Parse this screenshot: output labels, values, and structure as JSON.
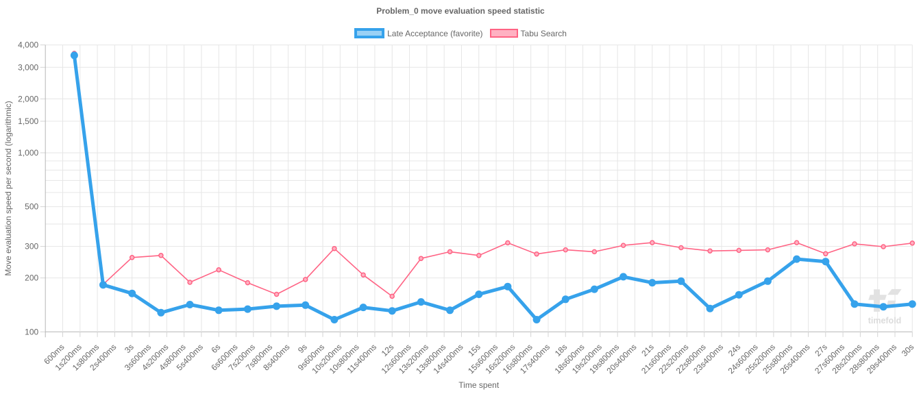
{
  "chart_data": {
    "type": "line",
    "title": "Problem_0 move evaluation speed statistic",
    "xlabel": "Time spent",
    "ylabel": "Move evaluation speed per second (logarithmic)",
    "x_unit": "seconds",
    "xlim": [
      0,
      30
    ],
    "ylim": [
      100,
      4000
    ],
    "y_scale": "logarithmic",
    "grid": true,
    "legend_position": "top",
    "watermark_text": "timefold",
    "x_ticks": {
      "seconds": [
        0.6,
        1.2,
        1.8,
        2.4,
        3,
        3.6,
        4.2,
        4.8,
        5.4,
        6,
        6.6,
        7.2,
        7.8,
        8.4,
        9,
        9.6,
        10.2,
        10.8,
        11.4,
        12,
        12.6,
        13.2,
        13.8,
        14.4,
        15,
        15.6,
        16.2,
        16.8,
        17.4,
        18,
        18.6,
        19.2,
        19.8,
        20.4,
        21,
        21.6,
        22.2,
        22.8,
        23.4,
        24,
        24.6,
        25.2,
        25.8,
        26.4,
        27,
        27.6,
        28.2,
        28.8,
        29.4,
        30
      ],
      "labels": [
        "600ms",
        "1s200ms",
        "1s800ms",
        "2s400ms",
        "3s",
        "3s600ms",
        "4s200ms",
        "4s800ms",
        "5s400ms",
        "6s",
        "6s600ms",
        "7s200ms",
        "7s800ms",
        "8s400ms",
        "9s",
        "9s600ms",
        "10s200ms",
        "10s800ms",
        "11s400ms",
        "12s",
        "12s600ms",
        "13s200ms",
        "13s800ms",
        "14s400ms",
        "15s",
        "15s600ms",
        "16s200ms",
        "16s800ms",
        "17s400ms",
        "18s",
        "18s600ms",
        "19s200ms",
        "19s800ms",
        "20s400ms",
        "21s",
        "21s600ms",
        "22s200ms",
        "22s800ms",
        "23s400ms",
        "24s",
        "24s600ms",
        "25s200ms",
        "25s800ms",
        "26s400ms",
        "27s",
        "27s600ms",
        "28s200ms",
        "28s800ms",
        "29s400ms",
        "30s"
      ]
    },
    "y_ticks": {
      "values": [
        100,
        200,
        300,
        400,
        500,
        600,
        700,
        800,
        900,
        1000,
        1500,
        2000,
        3000,
        4000
      ],
      "labels": [
        "100",
        "200",
        "300",
        "",
        "500",
        "",
        "",
        "",
        "",
        "1,000",
        "1,500",
        "2,000",
        "3,000",
        "4,000"
      ]
    },
    "series": [
      {
        "name": "Tabu Search",
        "color": "#ff6384",
        "fill_color": "#ffb1c2",
        "line_width": 1.6,
        "point_radius": 3.0,
        "point_style": "ring",
        "x": [
          1,
          2,
          3,
          4,
          5,
          6,
          7,
          8,
          9,
          10,
          11,
          12,
          13,
          14,
          15,
          16,
          17,
          18,
          19,
          20,
          21,
          22,
          23,
          24,
          25,
          26,
          27,
          28,
          29,
          30
        ],
        "values": [
          3590,
          184,
          260,
          267,
          189,
          222,
          188,
          162,
          196,
          292,
          208,
          158,
          257,
          280,
          267,
          314,
          272,
          287,
          280,
          304,
          315,
          295,
          283,
          285,
          287,
          315,
          273,
          310,
          299,
          313
        ]
      },
      {
        "name": "Late Acceptance (favorite)",
        "color": "#36a2eb",
        "fill_color": "#9ad1f5",
        "line_width": 5,
        "point_radius": 5.5,
        "point_style": "filled",
        "x": [
          1,
          2,
          3,
          4,
          5,
          6,
          7,
          8,
          9,
          10,
          11,
          12,
          13,
          14,
          15,
          16,
          17,
          18,
          19,
          20,
          21,
          22,
          23,
          24,
          25,
          26,
          27,
          28,
          29,
          30
        ],
        "values": [
          3500,
          183,
          164,
          128,
          142,
          132,
          134,
          139,
          141,
          117,
          137,
          131,
          147,
          132,
          162,
          179,
          117,
          152,
          173,
          203,
          188,
          192,
          135,
          161,
          192,
          255,
          247,
          143,
          138,
          143
        ]
      }
    ],
    "legend_order": [
      "Late Acceptance (favorite)",
      "Tabu Search"
    ]
  },
  "colors": {
    "text": "#666666",
    "grid": "#e6e6e6",
    "axis_border": "#b6b6b6",
    "tick_mark": "#d4d4d4",
    "watermark": "#e2e2e2",
    "watermark_text": "#dcdcdc",
    "background": "#ffffff"
  }
}
